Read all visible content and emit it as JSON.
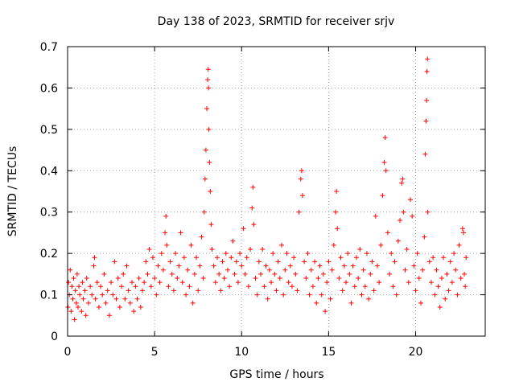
{
  "chart_data": {
    "type": "scatter",
    "title": "Day 138 of 2023, SRMTID for receiver srjv",
    "xlabel": "GPS time / hours",
    "ylabel": "SRMTID / TECUs",
    "xlim": [
      0,
      24
    ],
    "ylim": [
      0,
      0.7
    ],
    "x_ticks": [
      {
        "value": 0,
        "label": "0"
      },
      {
        "value": 5,
        "label": "5"
      },
      {
        "value": 10,
        "label": "10"
      },
      {
        "value": 15,
        "label": "15"
      },
      {
        "value": 20,
        "label": "20"
      }
    ],
    "y_ticks": [
      {
        "value": 0,
        "label": "0"
      },
      {
        "value": 0.1,
        "label": "0.1"
      },
      {
        "value": 0.2,
        "label": "0.2"
      },
      {
        "value": 0.3,
        "label": "0.3"
      },
      {
        "value": 0.4,
        "label": "0.4"
      },
      {
        "value": 0.5,
        "label": "0.5"
      },
      {
        "value": 0.6,
        "label": "0.6"
      },
      {
        "value": 0.7,
        "label": "0.7"
      }
    ],
    "grid": true,
    "marker": "+",
    "color": "#ff0000",
    "series": [
      {
        "name": "SRMTID",
        "points": [
          [
            0.02,
            0.07
          ],
          [
            0.05,
            0.13
          ],
          [
            0.1,
            0.1
          ],
          [
            0.15,
            0.16
          ],
          [
            0.2,
            0.06
          ],
          [
            0.25,
            0.12
          ],
          [
            0.3,
            0.09
          ],
          [
            0.35,
            0.14
          ],
          [
            0.4,
            0.04
          ],
          [
            0.45,
            0.11
          ],
          [
            0.5,
            0.08
          ],
          [
            0.55,
            0.15
          ],
          [
            0.6,
            0.07
          ],
          [
            0.65,
            0.12
          ],
          [
            0.7,
            0.1
          ],
          [
            0.8,
            0.06
          ],
          [
            0.85,
            0.13
          ],
          [
            0.9,
            0.09
          ],
          [
            1.0,
            0.11
          ],
          [
            1.05,
            0.05
          ],
          [
            1.1,
            0.14
          ],
          [
            1.2,
            0.08
          ],
          [
            1.3,
            0.12
          ],
          [
            1.4,
            0.1
          ],
          [
            1.5,
            0.17
          ],
          [
            1.55,
            0.19
          ],
          [
            1.6,
            0.09
          ],
          [
            1.7,
            0.13
          ],
          [
            1.8,
            0.07
          ],
          [
            1.9,
            0.12
          ],
          [
            2.0,
            0.1
          ],
          [
            2.1,
            0.15
          ],
          [
            2.2,
            0.08
          ],
          [
            2.3,
            0.11
          ],
          [
            2.4,
            0.05
          ],
          [
            2.5,
            0.13
          ],
          [
            2.6,
            0.1
          ],
          [
            2.7,
            0.18
          ],
          [
            2.8,
            0.09
          ],
          [
            2.9,
            0.14
          ],
          [
            3.0,
            0.07
          ],
          [
            3.1,
            0.12
          ],
          [
            3.2,
            0.15
          ],
          [
            3.3,
            0.09
          ],
          [
            3.4,
            0.17
          ],
          [
            3.5,
            0.11
          ],
          [
            3.6,
            0.08
          ],
          [
            3.7,
            0.13
          ],
          [
            3.8,
            0.06
          ],
          [
            3.9,
            0.12
          ],
          [
            4.0,
            0.09
          ],
          [
            4.1,
            0.14
          ],
          [
            4.2,
            0.07
          ],
          [
            4.3,
            0.11
          ],
          [
            4.4,
            0.13
          ],
          [
            4.5,
            0.18
          ],
          [
            4.6,
            0.15
          ],
          [
            4.7,
            0.21
          ],
          [
            4.8,
            0.12
          ],
          [
            4.9,
            0.19
          ],
          [
            5.0,
            0.14
          ],
          [
            5.1,
            0.1
          ],
          [
            5.2,
            0.17
          ],
          [
            5.3,
            0.13
          ],
          [
            5.4,
            0.2
          ],
          [
            5.5,
            0.16
          ],
          [
            5.6,
            0.25
          ],
          [
            5.65,
            0.29
          ],
          [
            5.7,
            0.22
          ],
          [
            5.8,
            0.12
          ],
          [
            5.9,
            0.18
          ],
          [
            6.0,
            0.15
          ],
          [
            6.1,
            0.11
          ],
          [
            6.2,
            0.2
          ],
          [
            6.3,
            0.14
          ],
          [
            6.4,
            0.17
          ],
          [
            6.5,
            0.25
          ],
          [
            6.6,
            0.13
          ],
          [
            6.7,
            0.19
          ],
          [
            6.8,
            0.1
          ],
          [
            6.9,
            0.16
          ],
          [
            7.0,
            0.12
          ],
          [
            7.1,
            0.22
          ],
          [
            7.2,
            0.08
          ],
          [
            7.3,
            0.15
          ],
          [
            7.4,
            0.19
          ],
          [
            7.5,
            0.11
          ],
          [
            7.6,
            0.17
          ],
          [
            7.7,
            0.24
          ],
          [
            7.8,
            0.14
          ],
          [
            7.85,
            0.3
          ],
          [
            7.9,
            0.38
          ],
          [
            7.95,
            0.45
          ],
          [
            8.0,
            0.55
          ],
          [
            8.05,
            0.62
          ],
          [
            8.08,
            0.645
          ],
          [
            8.1,
            0.6
          ],
          [
            8.12,
            0.5
          ],
          [
            8.15,
            0.42
          ],
          [
            8.2,
            0.35
          ],
          [
            8.25,
            0.27
          ],
          [
            8.3,
            0.21
          ],
          [
            8.4,
            0.17
          ],
          [
            8.5,
            0.13
          ],
          [
            8.6,
            0.19
          ],
          [
            8.7,
            0.15
          ],
          [
            8.8,
            0.11
          ],
          [
            8.9,
            0.18
          ],
          [
            9.0,
            0.14
          ],
          [
            9.1,
            0.2
          ],
          [
            9.2,
            0.16
          ],
          [
            9.3,
            0.12
          ],
          [
            9.4,
            0.19
          ],
          [
            9.5,
            0.23
          ],
          [
            9.6,
            0.15
          ],
          [
            9.7,
            0.18
          ],
          [
            9.8,
            0.13
          ],
          [
            9.9,
            0.2
          ],
          [
            10.0,
            0.17
          ],
          [
            10.1,
            0.26
          ],
          [
            10.2,
            0.15
          ],
          [
            10.3,
            0.19
          ],
          [
            10.4,
            0.12
          ],
          [
            10.5,
            0.21
          ],
          [
            10.6,
            0.31
          ],
          [
            10.65,
            0.36
          ],
          [
            10.7,
            0.27
          ],
          [
            10.8,
            0.14
          ],
          [
            10.9,
            0.1
          ],
          [
            11.0,
            0.18
          ],
          [
            11.1,
            0.15
          ],
          [
            11.2,
            0.21
          ],
          [
            11.3,
            0.12
          ],
          [
            11.4,
            0.17
          ],
          [
            11.5,
            0.09
          ],
          [
            11.6,
            0.16
          ],
          [
            11.7,
            0.13
          ],
          [
            11.8,
            0.2
          ],
          [
            11.9,
            0.15
          ],
          [
            12.0,
            0.11
          ],
          [
            12.1,
            0.18
          ],
          [
            12.2,
            0.14
          ],
          [
            12.3,
            0.22
          ],
          [
            12.4,
            0.1
          ],
          [
            12.5,
            0.16
          ],
          [
            12.6,
            0.2
          ],
          [
            12.7,
            0.13
          ],
          [
            12.8,
            0.17
          ],
          [
            12.9,
            0.12
          ],
          [
            13.0,
            0.19
          ],
          [
            13.1,
            0.15
          ],
          [
            13.2,
            0.11
          ],
          [
            13.3,
            0.3
          ],
          [
            13.4,
            0.38
          ],
          [
            13.45,
            0.4
          ],
          [
            13.5,
            0.34
          ],
          [
            13.6,
            0.18
          ],
          [
            13.7,
            0.14
          ],
          [
            13.8,
            0.2
          ],
          [
            13.9,
            0.1
          ],
          [
            14.0,
            0.16
          ],
          [
            14.1,
            0.12
          ],
          [
            14.2,
            0.18
          ],
          [
            14.3,
            0.08
          ],
          [
            14.4,
            0.14
          ],
          [
            14.5,
            0.17
          ],
          [
            14.6,
            0.1
          ],
          [
            14.7,
            0.15
          ],
          [
            14.8,
            0.06
          ],
          [
            14.9,
            0.13
          ],
          [
            15.0,
            0.18
          ],
          [
            15.1,
            0.09
          ],
          [
            15.2,
            0.16
          ],
          [
            15.3,
            0.22
          ],
          [
            15.4,
            0.3
          ],
          [
            15.45,
            0.35
          ],
          [
            15.5,
            0.26
          ],
          [
            15.6,
            0.14
          ],
          [
            15.7,
            0.19
          ],
          [
            15.8,
            0.11
          ],
          [
            15.9,
            0.17
          ],
          [
            16.0,
            0.13
          ],
          [
            16.1,
            0.2
          ],
          [
            16.2,
            0.15
          ],
          [
            16.3,
            0.08
          ],
          [
            16.4,
            0.17
          ],
          [
            16.5,
            0.12
          ],
          [
            16.6,
            0.19
          ],
          [
            16.7,
            0.14
          ],
          [
            16.8,
            0.21
          ],
          [
            16.9,
            0.1
          ],
          [
            17.0,
            0.16
          ],
          [
            17.1,
            0.12
          ],
          [
            17.2,
            0.2
          ],
          [
            17.3,
            0.09
          ],
          [
            17.4,
            0.15
          ],
          [
            17.5,
            0.18
          ],
          [
            17.6,
            0.11
          ],
          [
            17.7,
            0.29
          ],
          [
            17.8,
            0.17
          ],
          [
            17.9,
            0.13
          ],
          [
            18.0,
            0.22
          ],
          [
            18.1,
            0.34
          ],
          [
            18.2,
            0.42
          ],
          [
            18.25,
            0.48
          ],
          [
            18.3,
            0.4
          ],
          [
            18.4,
            0.25
          ],
          [
            18.5,
            0.15
          ],
          [
            18.6,
            0.2
          ],
          [
            18.7,
            0.12
          ],
          [
            18.8,
            0.18
          ],
          [
            18.9,
            0.1
          ],
          [
            19.0,
            0.23
          ],
          [
            19.1,
            0.28
          ],
          [
            19.2,
            0.37
          ],
          [
            19.25,
            0.38
          ],
          [
            19.3,
            0.3
          ],
          [
            19.4,
            0.16
          ],
          [
            19.5,
            0.21
          ],
          [
            19.6,
            0.13
          ],
          [
            19.7,
            0.33
          ],
          [
            19.8,
            0.29
          ],
          [
            19.9,
            0.17
          ],
          [
            20.0,
            0.11
          ],
          [
            20.1,
            0.2
          ],
          [
            20.2,
            0.14
          ],
          [
            20.3,
            0.08
          ],
          [
            20.4,
            0.16
          ],
          [
            20.5,
            0.24
          ],
          [
            20.55,
            0.44
          ],
          [
            20.6,
            0.52
          ],
          [
            20.63,
            0.57
          ],
          [
            20.65,
            0.64
          ],
          [
            20.68,
            0.67
          ],
          [
            20.7,
            0.3
          ],
          [
            20.8,
            0.18
          ],
          [
            20.9,
            0.13
          ],
          [
            21.0,
            0.19
          ],
          [
            21.1,
            0.1
          ],
          [
            21.2,
            0.16
          ],
          [
            21.3,
            0.12
          ],
          [
            21.4,
            0.07
          ],
          [
            21.5,
            0.14
          ],
          [
            21.6,
            0.19
          ],
          [
            21.7,
            0.09
          ],
          [
            21.8,
            0.15
          ],
          [
            21.9,
            0.11
          ],
          [
            22.0,
            0.18
          ],
          [
            22.1,
            0.13
          ],
          [
            22.2,
            0.2
          ],
          [
            22.3,
            0.16
          ],
          [
            22.4,
            0.1
          ],
          [
            22.5,
            0.22
          ],
          [
            22.6,
            0.14
          ],
          [
            22.7,
            0.26
          ],
          [
            22.75,
            0.25
          ],
          [
            22.8,
            0.15
          ],
          [
            22.85,
            0.12
          ],
          [
            22.9,
            0.19
          ]
        ]
      }
    ]
  }
}
